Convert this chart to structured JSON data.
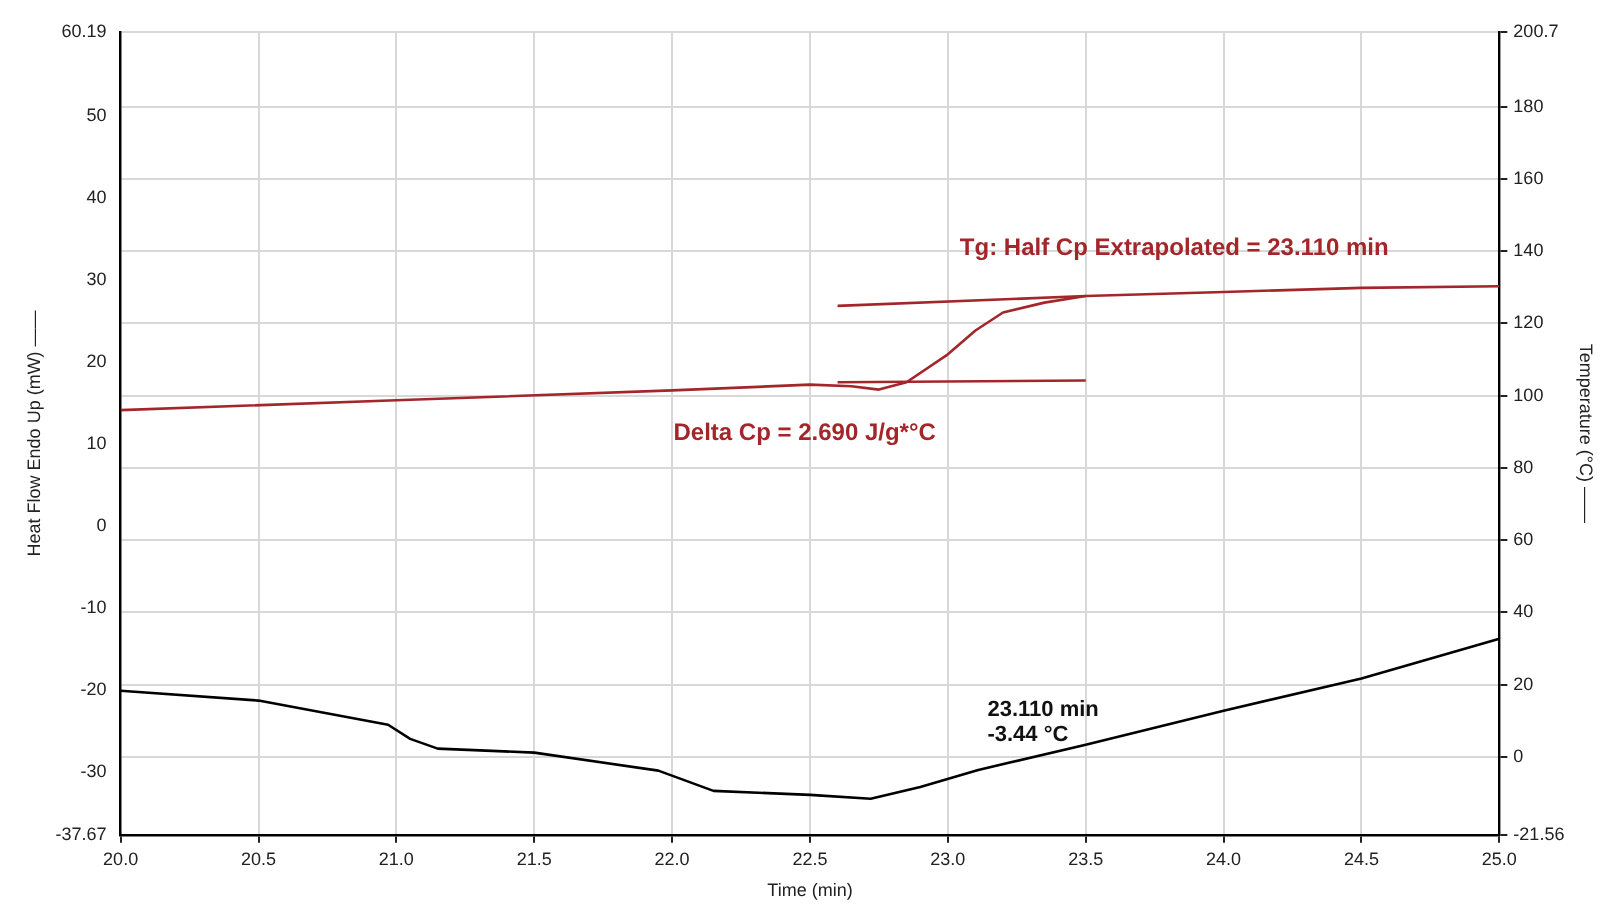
{
  "chart_data": {
    "type": "line",
    "xlabel": "Time (min)",
    "ylabel": "Heat Flow Endo Up (mW) ——",
    "y2label": "Temperature (°C) ——",
    "xlim": [
      20,
      25
    ],
    "xticks": [
      {
        "value": 20,
        "label": "20.0"
      },
      {
        "value": 20.5,
        "label": "20.5"
      },
      {
        "value": 21,
        "label": "21.0"
      },
      {
        "value": 21.5,
        "label": "21.5"
      },
      {
        "value": 22,
        "label": "22.0"
      },
      {
        "value": 22.5,
        "label": "22.5"
      },
      {
        "value": 23,
        "label": "23.0"
      },
      {
        "value": 23.5,
        "label": "23.5"
      },
      {
        "value": 24,
        "label": "24.0"
      },
      {
        "value": 24.5,
        "label": "24.5"
      },
      {
        "value": 25,
        "label": "25.0"
      }
    ],
    "ylim": [
      -37.67,
      60.19
    ],
    "yticks": [
      -37.67,
      -30,
      -20,
      -10,
      0,
      10,
      20,
      30,
      40,
      50,
      60.19
    ],
    "y2lim": [
      -21.56,
      200.7
    ],
    "y2ticks": [
      -21.56,
      0,
      20,
      40,
      60,
      80,
      100,
      120,
      140,
      160,
      180,
      200.7
    ],
    "grid": true,
    "line_style": "solid",
    "marker": "none",
    "series": [
      {
        "color": "#a3262a",
        "x": [
          20,
          21,
          22,
          22.5,
          22.65,
          22.75,
          22.85,
          23,
          23.1,
          23.2,
          23.35,
          23.5,
          24,
          24.5,
          25
        ],
        "values": [
          14.1,
          15.3,
          16.5,
          17.2,
          17.0,
          16.6,
          17.5,
          20.9,
          23.8,
          26.0,
          27.2,
          28.0,
          28.5,
          29.0,
          29.2
        ]
      },
      {
        "color": "#a3262a",
        "x": [
          22.6,
          23.5
        ],
        "values": [
          17.5,
          17.7
        ]
      },
      {
        "color": "#a3262a",
        "x": [
          22.6,
          23.5
        ],
        "values": [
          26.8,
          28.0
        ]
      },
      {
        "color": "#000000",
        "axis": "y2",
        "x": [
          20,
          20.5,
          20.97,
          21.05,
          21.15,
          21.5,
          21.95,
          22.15,
          22.5,
          22.72,
          22.9,
          23.11,
          23.5,
          24,
          24.5,
          25
        ],
        "values": [
          18.3,
          15.6,
          8.9,
          5.0,
          2.3,
          1.2,
          -3.8,
          -9.4,
          -10.5,
          -11.6,
          -8.3,
          -3.6,
          3.4,
          12.8,
          21.7,
          32.7
        ]
      }
    ],
    "annotations": [
      "Delta Cp = 2.690 J/g*°C",
      "Tg: Half Cp Extrapolated = 23.110 min",
      "23.110 min",
      "-3.44 °C"
    ]
  }
}
